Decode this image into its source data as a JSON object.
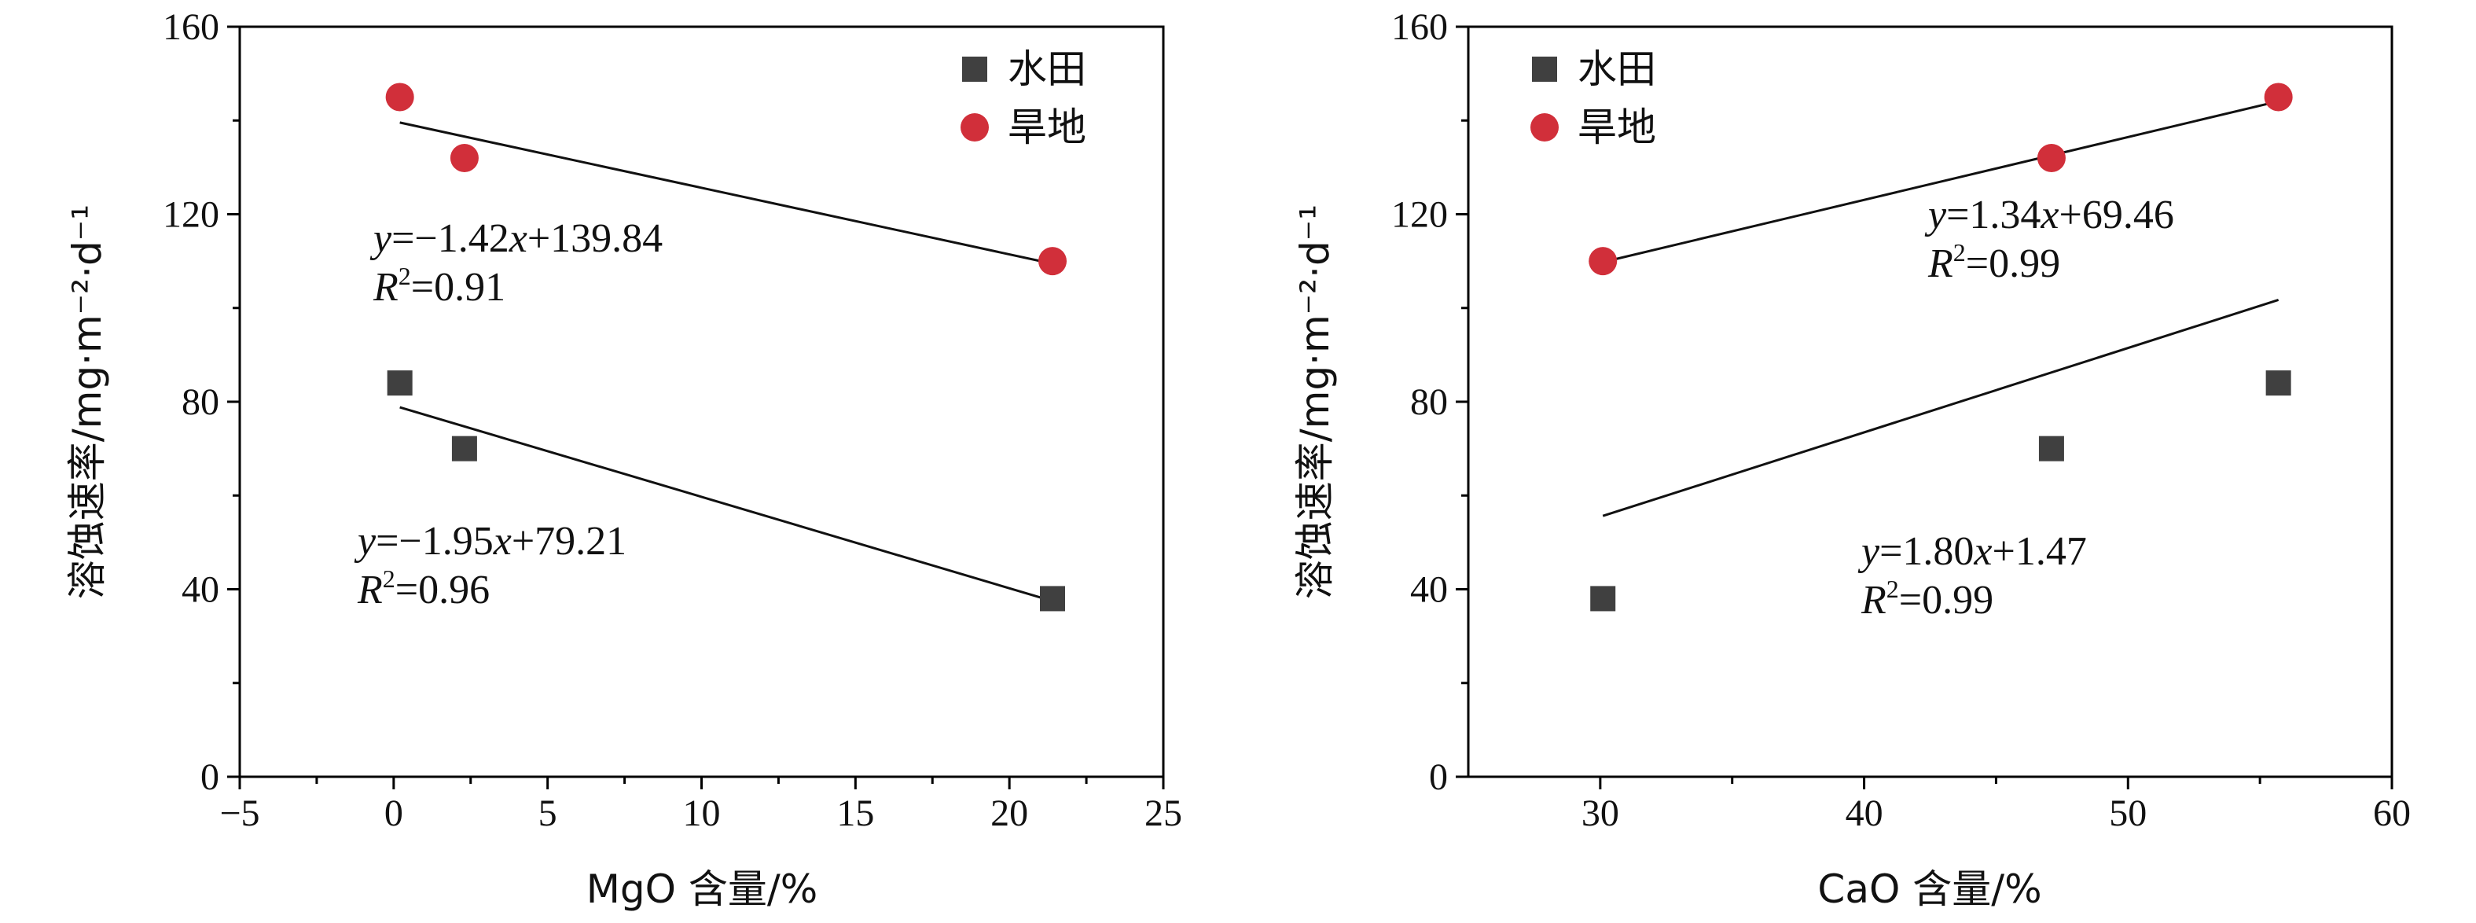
{
  "chart_data": [
    {
      "type": "scatter",
      "title": "",
      "xlabel": "MgO 含量/%",
      "ylabel": "溶蚀速率/mg·m⁻²·d⁻¹",
      "xlim": [
        -5,
        25
      ],
      "ylim": [
        0,
        160
      ],
      "xticks": [
        -5,
        0,
        5,
        10,
        15,
        20,
        25
      ],
      "yticks": [
        0,
        40,
        80,
        120,
        160
      ],
      "xtick_labels": [
        "−5",
        "0",
        "5",
        "10",
        "15",
        "20",
        "25"
      ],
      "ytick_labels": [
        "0",
        "40",
        "80",
        "120",
        "160"
      ],
      "legend_position": "top-right",
      "series": [
        {
          "name": "水田",
          "marker": "square",
          "color": "#404040",
          "x": [
            0.2,
            2.3,
            21.4
          ],
          "y": [
            84,
            70,
            38
          ],
          "fit": {
            "slope": -1.95,
            "intercept": 79.21,
            "x_range": [
              0.2,
              21.4
            ]
          },
          "equation": {
            "y_prefix": "y",
            "eq": "=−1.95",
            "x": "x",
            "rest": "+79.21",
            "r_label": "R",
            "r_sup": "2",
            "r_value": "=0.96"
          }
        },
        {
          "name": "旱地",
          "marker": "circle",
          "color": "#d12f3a",
          "x": [
            0.2,
            2.3,
            21.4
          ],
          "y": [
            145,
            132,
            110
          ],
          "fit": {
            "slope": -1.42,
            "intercept": 139.84,
            "x_range": [
              0.2,
              21.4
            ]
          },
          "equation": {
            "y_prefix": "y",
            "eq": "=−1.42",
            "x": "x",
            "rest": "+139.84",
            "r_label": "R",
            "r_sup": "2",
            "r_value": "=0.91"
          }
        }
      ]
    },
    {
      "type": "scatter",
      "title": "",
      "xlabel": "CaO 含量/%",
      "ylabel": "溶蚀速率/mg·m⁻²·d⁻¹",
      "xlim": [
        25,
        60
      ],
      "ylim": [
        0,
        160
      ],
      "xticks": [
        30,
        40,
        50,
        60
      ],
      "yticks": [
        0,
        40,
        80,
        120,
        160
      ],
      "xtick_labels": [
        "30",
        "40",
        "50",
        "60"
      ],
      "ytick_labels": [
        "0",
        "40",
        "80",
        "120",
        "160"
      ],
      "legend_position": "top-left",
      "series": [
        {
          "name": "水田",
          "marker": "square",
          "color": "#404040",
          "x": [
            30.1,
            47.1,
            55.7
          ],
          "y": [
            38,
            70,
            84
          ],
          "fit": {
            "slope": 1.8,
            "intercept": 1.47,
            "x_range": [
              30.1,
              55.7
            ]
          },
          "equation": {
            "y_prefix": "y",
            "eq": "=1.80",
            "x": "x",
            "rest": "+1.47",
            "r_label": "R",
            "r_sup": "2",
            "r_value": "=0.99"
          }
        },
        {
          "name": "旱地",
          "marker": "circle",
          "color": "#d12f3a",
          "x": [
            30.1,
            47.1,
            55.7
          ],
          "y": [
            110,
            132,
            145
          ],
          "fit": {
            "slope": 1.34,
            "intercept": 69.46,
            "x_range": [
              30.1,
              55.7
            ]
          },
          "equation": {
            "y_prefix": "y",
            "eq": "=1.34",
            "x": "x",
            "rest": "+69.46",
            "r_label": "R",
            "r_sup": "2",
            "r_value": "=0.99"
          }
        }
      ]
    }
  ]
}
